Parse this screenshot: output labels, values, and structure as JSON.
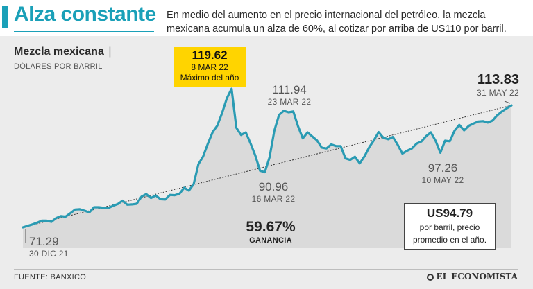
{
  "header": {
    "title": "Alza constante",
    "subtitle": "En medio del aumento en el precio internacional del petróleo, la mezcla mexicana acumula un alza de 60%, al cotizar por arriba de US110 por barril."
  },
  "chart_header": {
    "name": "Mezcla mexicana",
    "separator": "|",
    "units": "DÓLARES POR BARRIL"
  },
  "annotations": {
    "max": {
      "value": "119.62",
      "date": "8 MAR 22",
      "note": "Máximo del año"
    },
    "peak2": {
      "value": "111.94",
      "date": "23 MAR 22"
    },
    "low1": {
      "value": "90.96",
      "date": "16 MAR 22"
    },
    "low2": {
      "value": "97.26",
      "date": "10 MAY 22"
    },
    "start": {
      "value": "71.29",
      "date": "30 DIC 21"
    },
    "end": {
      "value": "113.83",
      "date": "31 MAY 22"
    },
    "gain": {
      "value": "59.67",
      "suffix": "%",
      "label": "GANANCIA"
    },
    "average": {
      "value": "US94.79",
      "text1": "por barril, precio",
      "text2": "promedio en el año."
    }
  },
  "footer": {
    "source": "FUENTE: BANXICO",
    "logo": "EL ECONOMISTA"
  },
  "colors": {
    "accent": "#1aa0b8",
    "line": "#2a9bb3",
    "highlight": "#ffd400",
    "area": "#d7d7d7"
  },
  "chart_data": {
    "type": "area",
    "title": "Mezcla mexicana",
    "ylabel": "DÓLARES POR BARRIL",
    "xlabel": "",
    "ylim": [
      68,
      122
    ],
    "series": [
      {
        "name": "Mezcla mexicana",
        "values": [
          71.3,
          71.8,
          72.3,
          72.9,
          73.6,
          73.6,
          73.2,
          74.5,
          75.2,
          75.0,
          76.2,
          77.5,
          77.6,
          77.1,
          76.5,
          78.3,
          78.3,
          78.1,
          78.0,
          78.8,
          79.4,
          80.6,
          79.2,
          79.3,
          79.5,
          82.0,
          82.9,
          81.5,
          82.4,
          81.1,
          81.0,
          82.6,
          82.5,
          83.0,
          85.1,
          84.1,
          86.4,
          93.3,
          96.0,
          100.5,
          104.5,
          106.8,
          111.2,
          116.3,
          119.6,
          106.0,
          103.5,
          104.4,
          100.5,
          96.3,
          91.0,
          90.5,
          95.7,
          105.0,
          110.5,
          111.9,
          111.4,
          111.7,
          106.6,
          102.3,
          104.4,
          103.0,
          101.6,
          99.1,
          98.8,
          100.2,
          99.6,
          99.6,
          95.3,
          94.8,
          95.9,
          93.6,
          96.0,
          99.2,
          101.7,
          104.5,
          102.5,
          102.0,
          102.8,
          100.1,
          97.0,
          98.0,
          98.8,
          100.5,
          101.2,
          103.1,
          104.4,
          101.5,
          97.3,
          101.5,
          101.3,
          105.0,
          107.0,
          105.1,
          106.7,
          107.5,
          108.2,
          108.3,
          107.8,
          108.5,
          110.4,
          111.7,
          112.8,
          113.8
        ],
        "trend": {
          "from": 71.29,
          "to": 113.83
        }
      }
    ]
  }
}
